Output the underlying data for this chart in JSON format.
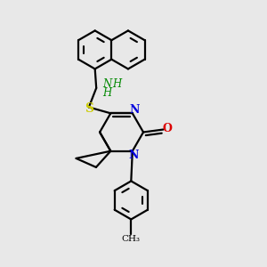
{
  "bg_color": "#e8e8e8",
  "bond_color": "#000000",
  "N_color": "#0000dd",
  "O_color": "#dd0000",
  "S_color": "#cccc00",
  "NH_color": "#008800",
  "lw": 1.6,
  "figsize": [
    3.0,
    3.0
  ],
  "dpi": 100,
  "xlim": [
    0.0,
    10.0
  ],
  "ylim": [
    0.0,
    10.0
  ]
}
